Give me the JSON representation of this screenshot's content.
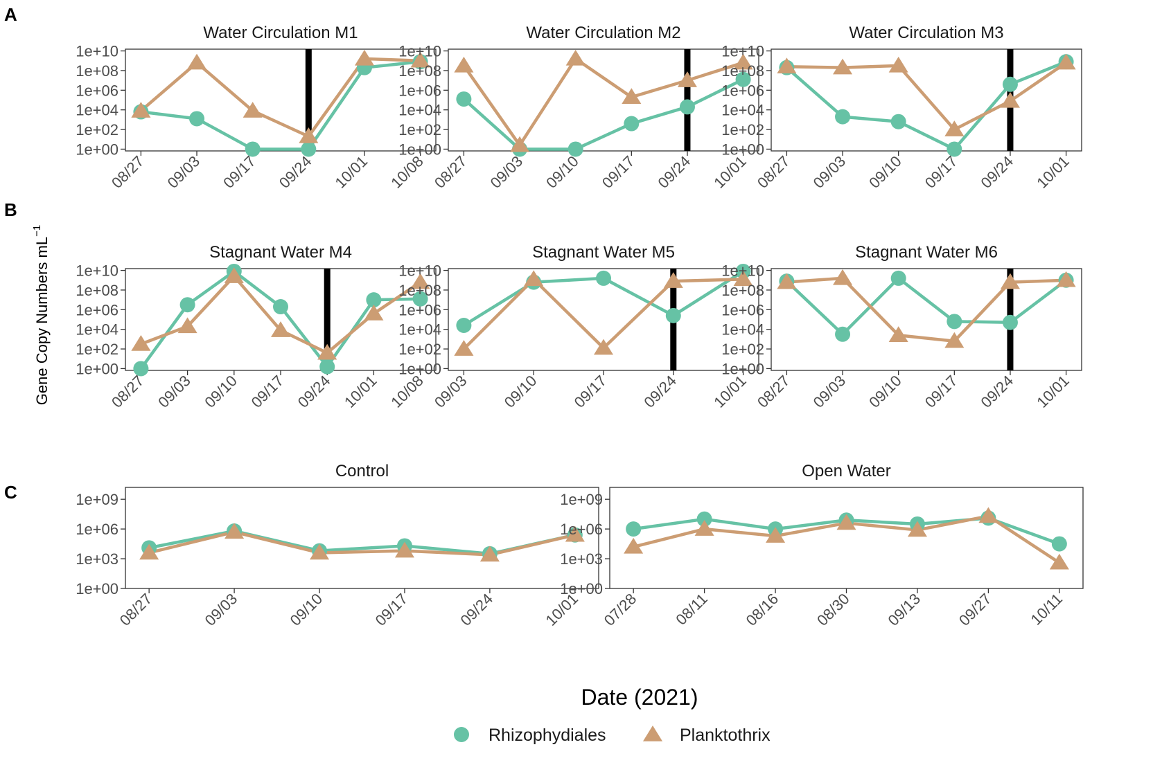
{
  "figure": {
    "y_axis_label": "Gene Copy Numbers  mL",
    "y_axis_superscript": "−1",
    "x_axis_label": "Date (2021)"
  },
  "series_style": {
    "Rhizophydiales": {
      "color": "#66c2a5",
      "marker": "circle"
    },
    "Planktothrix": {
      "color": "#cc9d73",
      "marker": "triangle"
    }
  },
  "legend": {
    "items": [
      {
        "label": "Rhizophydiales",
        "color": "#66c2a5",
        "marker": "circle"
      },
      {
        "label": "Planktothrix",
        "color": "#cc9d73",
        "marker": "triangle"
      }
    ]
  },
  "panel_labels": [
    "A",
    "B",
    "C"
  ],
  "chart_data": [
    {
      "type": "line",
      "row": "A",
      "title": "Water Circulation M1",
      "yscale": "log10",
      "yticks": [
        "1e+00",
        "1e+02",
        "1e+04",
        "1e+06",
        "1e+08",
        "1e+10"
      ],
      "ylim": [
        0,
        10
      ],
      "categories": [
        "08/27",
        "09/03",
        "09/17",
        "09/24",
        "10/01",
        "10/08"
      ],
      "vline": "09/24",
      "series": [
        {
          "name": "Rhizophydiales",
          "log10_values": [
            3.8,
            3.1,
            0,
            0,
            8.3,
            8.9
          ]
        },
        {
          "name": "Planktothrix",
          "log10_values": [
            3.9,
            8.8,
            3.9,
            1.3,
            9.2,
            9.0
          ]
        }
      ]
    },
    {
      "type": "line",
      "row": "A",
      "title": "Water Circulation M2",
      "yscale": "log10",
      "yticks": [
        "1e+00",
        "1e+02",
        "1e+04",
        "1e+06",
        "1e+08",
        "1e+10"
      ],
      "ylim": [
        0,
        10
      ],
      "categories": [
        "08/27",
        "09/03",
        "09/10",
        "09/17",
        "09/24",
        "10/01"
      ],
      "vline": "09/24",
      "series": [
        {
          "name": "Rhizophydiales",
          "log10_values": [
            5.1,
            0,
            0,
            2.6,
            4.3,
            7.1
          ]
        },
        {
          "name": "Planktothrix",
          "log10_values": [
            8.5,
            0.4,
            9.2,
            5.3,
            7.0,
            8.8
          ]
        }
      ]
    },
    {
      "type": "line",
      "row": "A",
      "title": "Water Circulation M3",
      "yscale": "log10",
      "yticks": [
        "1e+00",
        "1e+02",
        "1e+04",
        "1e+06",
        "1e+08",
        "1e+10"
      ],
      "ylim": [
        0,
        10
      ],
      "categories": [
        "08/27",
        "09/03",
        "09/10",
        "09/17",
        "09/24",
        "10/01"
      ],
      "vline": "09/24",
      "series": [
        {
          "name": "Rhizophydiales",
          "log10_values": [
            8.3,
            3.3,
            2.8,
            0,
            6.6,
            8.9
          ]
        },
        {
          "name": "Planktothrix",
          "log10_values": [
            8.4,
            8.3,
            8.5,
            2.0,
            4.9,
            8.8
          ]
        }
      ]
    },
    {
      "type": "line",
      "row": "B",
      "title": "Stagnant Water M4",
      "yscale": "log10",
      "yticks": [
        "1e+00",
        "1e+02",
        "1e+04",
        "1e+06",
        "1e+08",
        "1e+10"
      ],
      "ylim": [
        0,
        10
      ],
      "categories": [
        "08/27",
        "09/03",
        "09/10",
        "09/17",
        "09/24",
        "10/01",
        "10/08"
      ],
      "vline": "09/24",
      "series": [
        {
          "name": "Rhizophydiales",
          "log10_values": [
            0,
            6.5,
            9.9,
            6.3,
            0.2,
            7.0,
            7.1
          ]
        },
        {
          "name": "Planktothrix",
          "log10_values": [
            2.5,
            4.3,
            9.4,
            3.9,
            1.6,
            5.6,
            8.8
          ]
        }
      ]
    },
    {
      "type": "line",
      "row": "B",
      "title": "Stagnant Water M5",
      "yscale": "log10",
      "yticks": [
        "1e+00",
        "1e+02",
        "1e+04",
        "1e+06",
        "1e+08",
        "1e+10"
      ],
      "ylim": [
        0,
        10
      ],
      "categories": [
        "09/03",
        "09/10",
        "09/17",
        "09/24",
        "10/01"
      ],
      "vline": "09/24",
      "series": [
        {
          "name": "Rhizophydiales",
          "log10_values": [
            4.4,
            8.8,
            9.2,
            5.4,
            9.9
          ]
        },
        {
          "name": "Planktothrix",
          "log10_values": [
            2.0,
            9.1,
            2.1,
            8.9,
            9.1
          ]
        }
      ]
    },
    {
      "type": "line",
      "row": "B",
      "title": "Stagnant Water M6",
      "yscale": "log10",
      "yticks": [
        "1e+00",
        "1e+02",
        "1e+04",
        "1e+06",
        "1e+08",
        "1e+10"
      ],
      "ylim": [
        0,
        10
      ],
      "categories": [
        "08/27",
        "09/03",
        "09/10",
        "09/17",
        "09/24",
        "10/01"
      ],
      "vline": "09/24",
      "series": [
        {
          "name": "Rhizophydiales",
          "log10_values": [
            8.9,
            3.5,
            9.2,
            4.8,
            4.7,
            9.0
          ]
        },
        {
          "name": "Planktothrix",
          "log10_values": [
            8.8,
            9.2,
            3.4,
            2.8,
            8.8,
            9.0
          ]
        }
      ]
    },
    {
      "type": "line",
      "row": "C",
      "title": "Control",
      "yscale": "log10",
      "yticks": [
        "1e+00",
        "1e+03",
        "1e+06",
        "1e+09"
      ],
      "ylim": [
        0,
        10
      ],
      "categories": [
        "08/27",
        "09/03",
        "09/10",
        "09/17",
        "09/24",
        "10/01"
      ],
      "series": [
        {
          "name": "Rhizophydiales",
          "log10_values": [
            4.1,
            5.8,
            3.8,
            4.3,
            3.5,
            5.4
          ]
        },
        {
          "name": "Planktothrix",
          "log10_values": [
            3.6,
            5.7,
            3.6,
            3.8,
            3.4,
            5.4
          ]
        }
      ]
    },
    {
      "type": "line",
      "row": "C",
      "title": "Open Water",
      "yscale": "log10",
      "yticks": [
        "1e+00",
        "1e+03",
        "1e+06",
        "1e+09"
      ],
      "ylim": [
        0,
        10
      ],
      "categories": [
        "07/28",
        "08/11",
        "08/16",
        "08/30",
        "09/13",
        "09/27",
        "10/11"
      ],
      "series": [
        {
          "name": "Rhizophydiales",
          "log10_values": [
            6.0,
            7.0,
            6.0,
            6.9,
            6.5,
            7.1,
            4.5
          ]
        },
        {
          "name": "Planktothrix",
          "log10_values": [
            4.2,
            6.0,
            5.3,
            6.6,
            5.9,
            7.3,
            2.6
          ]
        }
      ]
    }
  ]
}
